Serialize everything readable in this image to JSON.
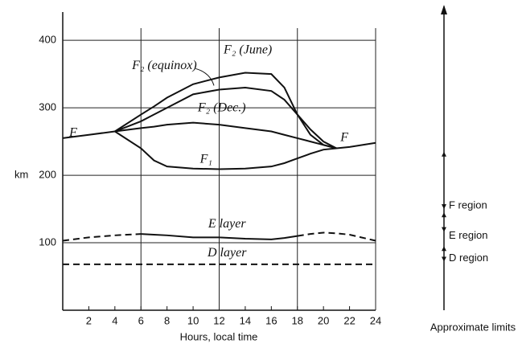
{
  "chart_data": {
    "type": "line",
    "y_axis_label": "km",
    "x_axis_label": "Hours, local time",
    "x": [
      0,
      2,
      4,
      6,
      7,
      8,
      10,
      12,
      14,
      16,
      17,
      18,
      19,
      20,
      21,
      22,
      24
    ],
    "series": [
      {
        "name": "F",
        "color": "#111111",
        "dash": false,
        "values": [
          255,
          260,
          265,
          null,
          null,
          null,
          null,
          null,
          null,
          null,
          null,
          null,
          null,
          null,
          240,
          242,
          248
        ]
      },
      {
        "name": "F₂ (June)",
        "color": "#111111",
        "dash": false,
        "values": [
          null,
          null,
          265,
          290,
          302,
          315,
          335,
          345,
          352,
          350,
          330,
          290,
          260,
          245,
          240,
          null,
          null
        ]
      },
      {
        "name": "F₂ (equinox)",
        "color": "#111111",
        "dash": false,
        "values": [
          null,
          null,
          265,
          280,
          290,
          300,
          320,
          327,
          330,
          325,
          312,
          290,
          268,
          250,
          240,
          null,
          null
        ]
      },
      {
        "name": "F₂ (Dec.)",
        "color": "#111111",
        "dash": false,
        "values": [
          null,
          null,
          265,
          270,
          272,
          275,
          278,
          275,
          270,
          265,
          260,
          255,
          250,
          245,
          240,
          null,
          null
        ]
      },
      {
        "name": "F₁",
        "color": "#111111",
        "dash": false,
        "values": [
          null,
          null,
          265,
          240,
          222,
          213,
          210,
          209,
          210,
          213,
          218,
          225,
          232,
          238,
          240,
          null,
          null
        ]
      },
      {
        "name": "E layer",
        "color": "#111111",
        "dash": false,
        "values": [
          null,
          null,
          null,
          113,
          112,
          111,
          108,
          108,
          106,
          105,
          107,
          110,
          null,
          null,
          null,
          null,
          null
        ]
      },
      {
        "color": "#111111",
        "dash": true,
        "values": [
          103,
          108,
          111,
          113,
          null,
          null,
          null,
          null,
          null,
          null,
          null,
          110,
          113,
          115,
          114,
          112,
          103
        ]
      },
      {
        "name": "D layer",
        "color": "#111111",
        "dash": true,
        "values": [
          68,
          68,
          68,
          68,
          68,
          68,
          68,
          68,
          68,
          68,
          68,
          68,
          68,
          68,
          68,
          68,
          68
        ]
      }
    ],
    "xlim": [
      0,
      24
    ],
    "ylim": [
      0,
      430
    ],
    "xticks": [
      2,
      4,
      6,
      8,
      10,
      12,
      14,
      16,
      18,
      20,
      22,
      24
    ],
    "yticks": [
      100,
      200,
      300,
      400
    ],
    "xgrid": [
      6,
      12,
      18,
      24
    ],
    "grid": true,
    "regions": [
      "F region",
      "E region",
      "D region"
    ],
    "regions_caption": "Approximate limits"
  }
}
